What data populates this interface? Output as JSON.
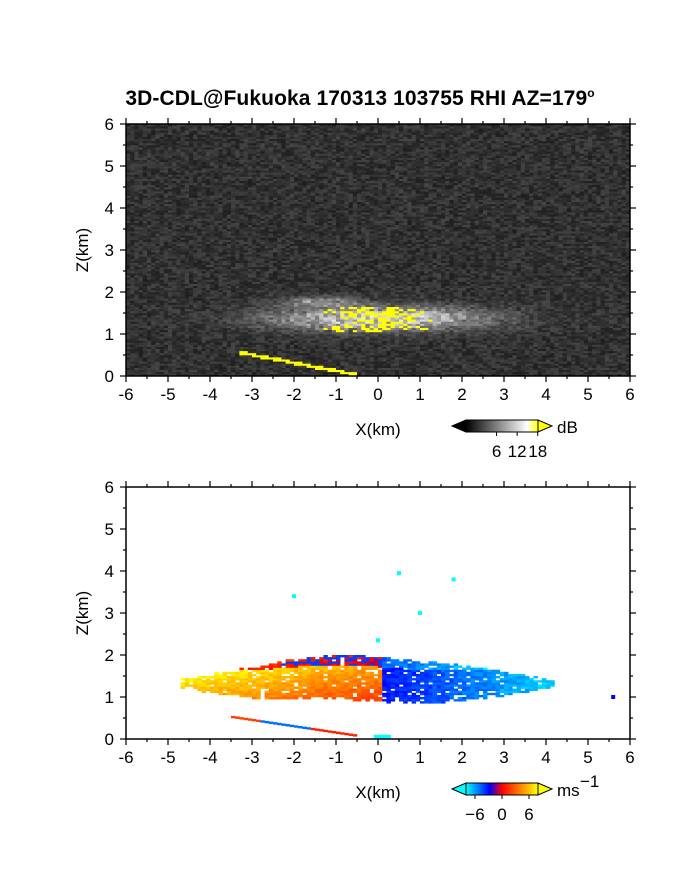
{
  "title": {
    "main": "3D-CDL@Fukuoka 170313 103755 RHI AZ=179",
    "degree_mark": "o"
  },
  "chart_data": [
    {
      "type": "heatmap",
      "field": "backscatter intensity",
      "xlabel": "X(km)",
      "ylabel": "Z(km)",
      "xlim": [
        -6,
        6
      ],
      "ylim": [
        0,
        6
      ],
      "x_ticks": [
        "-6",
        "-5",
        "-4",
        "-3",
        "-2",
        "-1",
        "0",
        "1",
        "2",
        "3",
        "4",
        "5",
        "6"
      ],
      "y_ticks": [
        "0",
        "1",
        "2",
        "3",
        "4",
        "5",
        "6"
      ],
      "colorbar": {
        "unit": "dB",
        "ticks": [
          "6",
          "12",
          "18"
        ],
        "range": [
          0,
          21
        ],
        "colors": [
          "#000000",
          "#ffffff",
          "#ffff00"
        ]
      },
      "features": {
        "background": "noise, dark gray",
        "cloud_layer": {
          "x_range": [
            -4.0,
            4.2
          ],
          "z_range": [
            0.9,
            2.0
          ],
          "level": "bright"
        },
        "saturated_core": {
          "x_range": [
            -1.4,
            1.4
          ],
          "z_range": [
            1.0,
            1.7
          ],
          "color": "#ffff00"
        },
        "surface_return": {
          "x_range": [
            -3.4,
            -0.6
          ],
          "z_range": [
            0.0,
            0.55
          ],
          "color": "#ffff00"
        }
      }
    },
    {
      "type": "heatmap",
      "field": "Doppler velocity",
      "xlabel": "X(km)",
      "ylabel": "Z(km)",
      "xlim": [
        -6,
        6
      ],
      "ylim": [
        0,
        6
      ],
      "x_ticks": [
        "-6",
        "-5",
        "-4",
        "-3",
        "-2",
        "-1",
        "0",
        "1",
        "2",
        "3",
        "4",
        "5",
        "6"
      ],
      "y_ticks": [
        "0",
        "1",
        "2",
        "3",
        "4",
        "5",
        "6"
      ],
      "colorbar": {
        "unit": "ms",
        "unit_exponent": "−1",
        "ticks": [
          "−6",
          "0",
          "6"
        ],
        "range": [
          -8,
          8
        ],
        "colors": [
          "#00ffff",
          "#0000ff",
          "#ff0000",
          "#ffff00"
        ]
      },
      "features": {
        "layer": {
          "x_range": [
            -4.6,
            4.1
          ],
          "z_range": [
            0.6,
            2.0
          ]
        },
        "positive_side": {
          "x_range": [
            -4.6,
            0.0
          ],
          "velocity": 6
        },
        "negative_side": {
          "x_range": [
            0.0,
            4.1
          ],
          "velocity": -6
        },
        "surface_return": {
          "x_range": [
            -3.5,
            -0.5
          ],
          "z_range": [
            0.0,
            0.5
          ]
        },
        "isolated_points": [
          {
            "x": 0.5,
            "z": 3.95
          },
          {
            "x": 1.8,
            "z": 3.8
          },
          {
            "x": -2.0,
            "z": 3.4
          },
          {
            "x": 1.0,
            "z": 3.0
          },
          {
            "x": 0.0,
            "z": 2.35
          },
          {
            "x": 5.6,
            "z": 1.0
          }
        ]
      }
    }
  ]
}
